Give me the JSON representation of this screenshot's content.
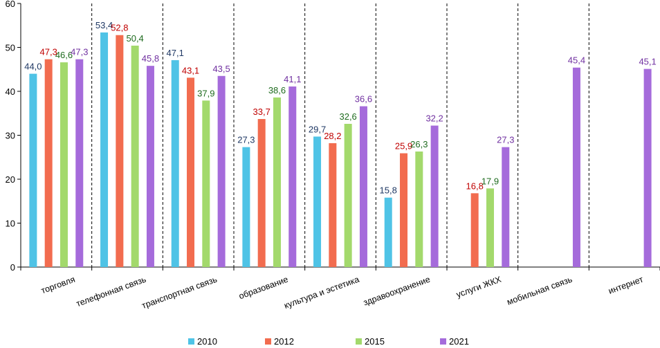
{
  "chart_data": {
    "type": "bar",
    "title": "",
    "xlabel": "",
    "ylabel": "",
    "ylim": [
      0,
      60
    ],
    "yticks": [
      0,
      10,
      20,
      30,
      40,
      50,
      60
    ],
    "categories": [
      "торговля",
      "телефонная связь",
      "транспортная связь",
      "образование",
      "культура и эстетика",
      "здравоохранение",
      "услуги ЖКХ",
      "мобильная связь",
      "интернет"
    ],
    "series": [
      {
        "name": "2010",
        "color": "#4FC3E6",
        "label_color": "#1F3864",
        "values": [
          44.0,
          53.4,
          47.1,
          27.3,
          29.7,
          15.8,
          null,
          null,
          null
        ],
        "labels": [
          "44,0",
          "53,4",
          "47,1",
          "27,3",
          "29,7",
          "15,8",
          "",
          "",
          ""
        ]
      },
      {
        "name": "2012",
        "color": "#F26C4F",
        "label_color": "#C00000",
        "values": [
          47.3,
          52.8,
          43.1,
          33.7,
          28.2,
          25.9,
          16.8,
          null,
          null
        ],
        "labels": [
          "47,3",
          "52,8",
          "43,1",
          "33,7",
          "28,2",
          "25,9",
          "16,8",
          "",
          ""
        ]
      },
      {
        "name": "2015",
        "color": "#A3D96C",
        "label_color": "#1E6B1E",
        "values": [
          46.6,
          50.4,
          37.9,
          38.6,
          32.6,
          26.3,
          17.9,
          null,
          null
        ],
        "labels": [
          "46,6",
          "50,4",
          "37,9",
          "38,6",
          "32,6",
          "26,3",
          "17,9",
          "",
          ""
        ]
      },
      {
        "name": "2021",
        "color": "#A56BDB",
        "label_color": "#7030A0",
        "values": [
          47.3,
          45.8,
          43.5,
          41.1,
          36.6,
          32.2,
          27.3,
          45.4,
          45.1
        ],
        "labels": [
          "47,3",
          "45,8",
          "43,5",
          "41,1",
          "36,6",
          "32,2",
          "27,3",
          "45,4",
          "45,1"
        ]
      }
    ],
    "legend_position": "bottom",
    "gridlines": false,
    "category_separators": "dashed"
  }
}
